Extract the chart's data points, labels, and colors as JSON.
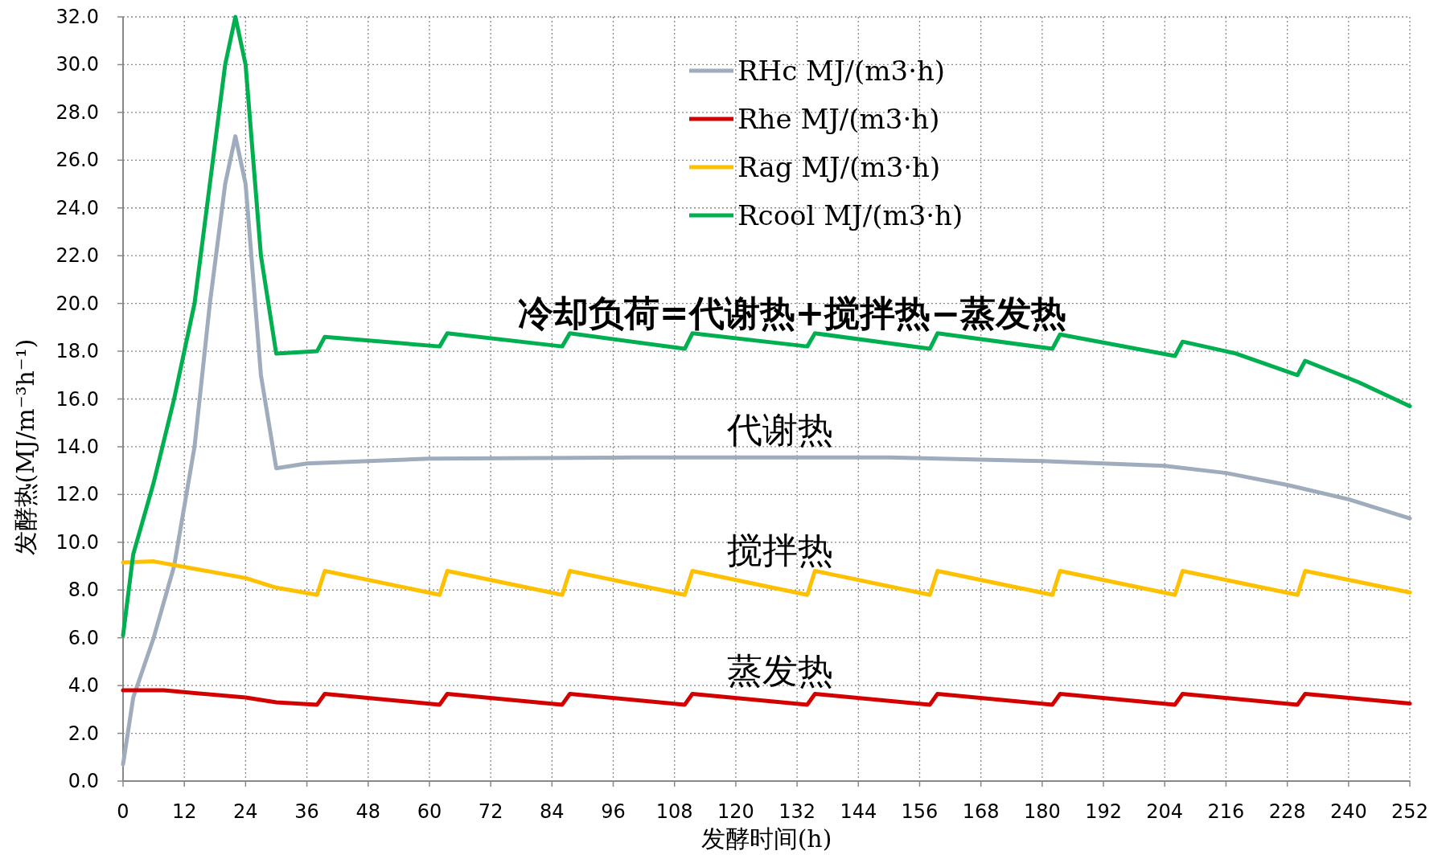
{
  "chart_data": {
    "type": "line",
    "xlabel": "发酵时间(h)",
    "ylabel": "发酵热(MJ/m⁻³h⁻¹)",
    "xlim": [
      0,
      252
    ],
    "ylim": [
      0,
      32
    ],
    "xticks": [
      0,
      12,
      24,
      36,
      48,
      60,
      72,
      84,
      96,
      108,
      120,
      132,
      144,
      156,
      168,
      180,
      192,
      204,
      216,
      228,
      240,
      252
    ],
    "yticks": [
      {
        "value": 0,
        "label": "0.0"
      },
      {
        "value": 2,
        "label": "2.0"
      },
      {
        "value": 4,
        "label": "4.0"
      },
      {
        "value": 6,
        "label": "6.0"
      },
      {
        "value": 8,
        "label": "8.0"
      },
      {
        "value": 10,
        "label": "10.0"
      },
      {
        "value": 12,
        "label": "12.0"
      },
      {
        "value": 14,
        "label": "14.0"
      },
      {
        "value": 16,
        "label": "16.0"
      },
      {
        "value": 18,
        "label": "18.0"
      },
      {
        "value": 20,
        "label": "20.0"
      },
      {
        "value": 22,
        "label": "22.0"
      },
      {
        "value": 24,
        "label": "24.0"
      },
      {
        "value": 26,
        "label": "26.0"
      },
      {
        "value": 28,
        "label": "28.0"
      },
      {
        "value": 30,
        "label": "30.0"
      },
      {
        "value": 32,
        "label": "32.0"
      }
    ],
    "grid": true,
    "legend": "top",
    "marker": "none",
    "line_style": "solid",
    "series": [
      {
        "name": "RHc MJ/(m3·h)",
        "color": "#9facbd",
        "x": [
          0,
          2,
          6,
          10,
          14,
          17,
          20,
          22,
          24,
          27,
          30,
          36,
          60,
          100,
          150,
          180,
          204,
          216,
          228,
          240,
          252
        ],
        "values": [
          0.7,
          3.5,
          6,
          9,
          14,
          20,
          25,
          27,
          25,
          17,
          13.1,
          13.3,
          13.5,
          13.55,
          13.55,
          13.4,
          13.2,
          12.9,
          12.4,
          11.8,
          11.0
        ]
      },
      {
        "name": "Rhe MJ/(m3·h)",
        "color": "#d40000",
        "x": [
          0,
          8,
          24,
          30,
          38,
          39.5,
          62,
          63.5,
          86,
          87.5,
          110,
          111.5,
          134,
          135.5,
          158,
          159.5,
          182,
          183.5,
          206,
          207.5,
          230,
          231.5,
          252
        ],
        "values": [
          3.8,
          3.8,
          3.5,
          3.3,
          3.2,
          3.65,
          3.2,
          3.65,
          3.2,
          3.65,
          3.2,
          3.65,
          3.2,
          3.65,
          3.2,
          3.65,
          3.2,
          3.65,
          3.2,
          3.65,
          3.2,
          3.65,
          3.25
        ]
      },
      {
        "name": "Rag MJ/(m3·h)",
        "color": "#ffc000",
        "x": [
          0,
          6,
          24,
          30,
          38,
          39.5,
          62,
          63.5,
          86,
          87.5,
          110,
          111.5,
          134,
          135.5,
          158,
          159.5,
          182,
          183.5,
          206,
          207.5,
          230,
          231.5,
          252
        ],
        "values": [
          9.15,
          9.2,
          8.5,
          8.1,
          7.8,
          8.8,
          7.8,
          8.8,
          7.8,
          8.8,
          7.8,
          8.8,
          7.8,
          8.8,
          7.8,
          8.8,
          7.8,
          8.8,
          7.8,
          8.8,
          7.8,
          8.8,
          7.9
        ]
      },
      {
        "name": "Rcool MJ/(m3·h)",
        "color": "#00b050",
        "x": [
          0,
          2,
          6,
          10,
          14,
          17,
          20,
          22,
          24,
          27,
          30,
          38,
          39.5,
          62,
          63.5,
          86,
          87.5,
          110,
          111.5,
          134,
          135.5,
          158,
          159.5,
          182,
          183.5,
          206,
          207.5,
          218,
          230,
          231.5,
          242,
          252
        ],
        "values": [
          6.1,
          9.5,
          12.5,
          16,
          20,
          25,
          30,
          32,
          30,
          22,
          17.9,
          18.0,
          18.6,
          18.2,
          18.75,
          18.2,
          18.75,
          18.1,
          18.75,
          18.2,
          18.75,
          18.1,
          18.75,
          18.1,
          18.7,
          17.8,
          18.4,
          17.9,
          17.0,
          17.6,
          16.7,
          15.7
        ]
      }
    ],
    "annotations": [
      "冷却负荷=代谢热+搅拌热−蒸发热",
      "代谢热",
      "搅拌热",
      "蒸发热"
    ]
  }
}
